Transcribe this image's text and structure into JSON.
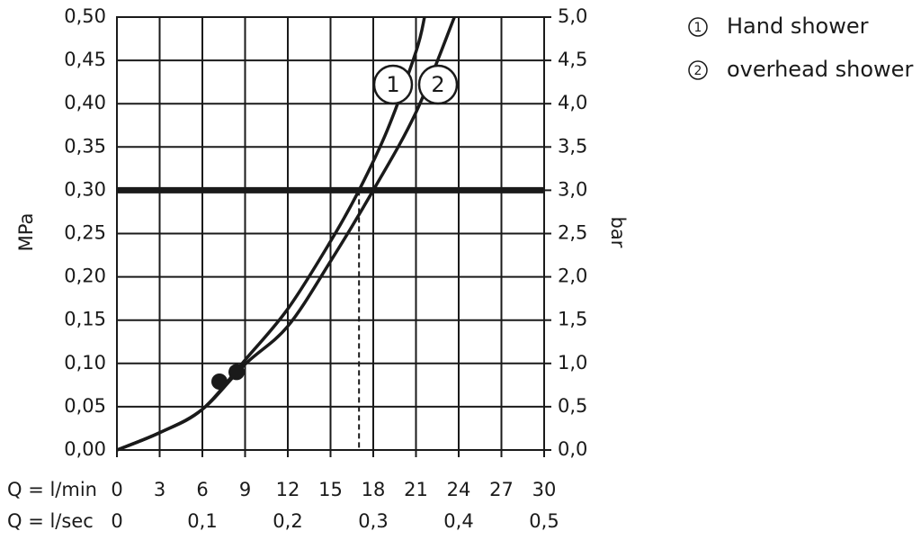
{
  "chart_data": {
    "type": "line",
    "x_row_labels": [
      "Q = l/min",
      "Q = l/sec"
    ],
    "ylabel": "MPa",
    "y2label": "bar",
    "xlim": [
      0,
      30
    ],
    "xticks": [
      0,
      3,
      6,
      9,
      12,
      15,
      18,
      21,
      24,
      27,
      30
    ],
    "x2lim": [
      0,
      0.5
    ],
    "x2ticks": [
      0,
      {
        "value": 0.1,
        "label": "0,1"
      },
      {
        "value": 0.2,
        "label": "0,2"
      },
      {
        "value": 0.3,
        "label": "0,3"
      },
      {
        "value": 0.4,
        "label": "0,4"
      },
      {
        "value": 0.5,
        "label": "0,5"
      }
    ],
    "ylim": [
      0,
      0.5
    ],
    "yticks": [
      {
        "value": 0,
        "label": "0,00"
      },
      {
        "value": 0.05,
        "label": "0,05"
      },
      {
        "value": 0.1,
        "label": "0,10"
      },
      {
        "value": 0.15,
        "label": "0,15"
      },
      {
        "value": 0.2,
        "label": "0,20"
      },
      {
        "value": 0.25,
        "label": "0,25"
      },
      {
        "value": 0.3,
        "label": "0,30"
      },
      {
        "value": 0.35,
        "label": "0,35"
      },
      {
        "value": 0.4,
        "label": "0,40"
      },
      {
        "value": 0.45,
        "label": "0,45"
      },
      {
        "value": 0.5,
        "label": "0,50"
      }
    ],
    "y2lim": [
      0,
      5
    ],
    "y2ticks": [
      {
        "value": 0,
        "label": "0,0"
      },
      {
        "value": 0.5,
        "label": "0,5"
      },
      {
        "value": 1,
        "label": "1,0"
      },
      {
        "value": 1.5,
        "label": "1,5"
      },
      {
        "value": 2,
        "label": "2,0"
      },
      {
        "value": 2.5,
        "label": "2,5"
      },
      {
        "value": 3,
        "label": "3,0"
      },
      {
        "value": 3.5,
        "label": "3,5"
      },
      {
        "value": 4,
        "label": "4,0"
      },
      {
        "value": 4.5,
        "label": "4,5"
      },
      {
        "value": 5,
        "label": "5,0"
      }
    ],
    "grid": true,
    "color": "#1a1a1a",
    "threshold": 0.3,
    "series": [
      {
        "name": "Hand shower",
        "label": "1",
        "color": "#1a1a1a",
        "x": [
          0,
          3,
          6,
          9,
          12,
          15,
          17,
          19,
          21,
          21.6
        ],
        "values": [
          0,
          0.02,
          0.047,
          0.104,
          0.163,
          0.241,
          0.3,
          0.37,
          0.46,
          0.5
        ],
        "reference_x": 17
      },
      {
        "name": "overhead shower",
        "label": "2",
        "color": "#1a1a1a",
        "x": [
          0,
          3,
          6,
          9,
          12,
          15,
          18,
          21,
          23.7
        ],
        "values": [
          0,
          0.02,
          0.047,
          0.099,
          0.143,
          0.218,
          0.3,
          0.39,
          0.5
        ],
        "reference_x": 18
      }
    ],
    "points": [
      {
        "x": 7.2,
        "y": 0.079
      },
      {
        "x": 8.4,
        "y": 0.09
      }
    ]
  }
}
